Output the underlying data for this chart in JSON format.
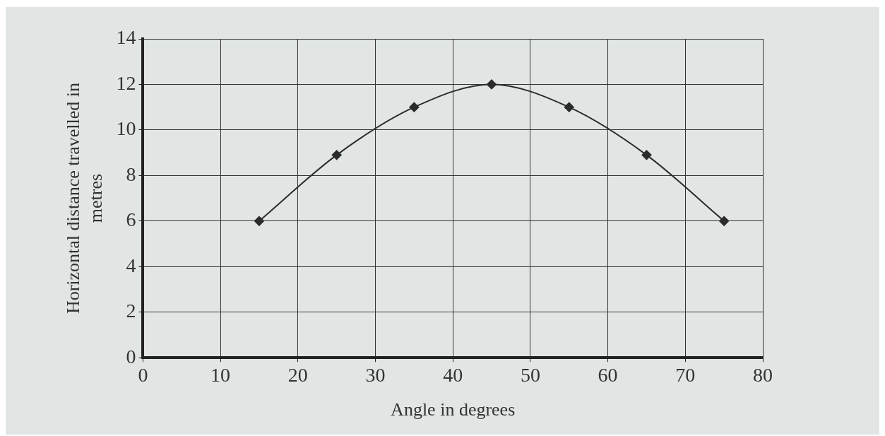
{
  "chart_data": {
    "type": "line",
    "xlabel": "Angle in degrees",
    "ylabel": "Horizontal distance travelled in metres",
    "x": [
      15,
      25,
      35,
      45,
      55,
      65,
      75
    ],
    "series": [
      {
        "color": "#2b2b2b",
        "values": [
          6,
          8.9,
          11,
          12,
          11,
          8.9,
          6
        ]
      }
    ],
    "xlim": [
      0,
      80
    ],
    "xticks": [
      0,
      10,
      20,
      30,
      40,
      50,
      60,
      70,
      80
    ],
    "ylim": [
      0,
      14
    ],
    "yticks": [
      0,
      2,
      4,
      6,
      8,
      10,
      12,
      14
    ],
    "grid": true,
    "legend": false,
    "marker": "diamond",
    "line_style": "solid"
  }
}
